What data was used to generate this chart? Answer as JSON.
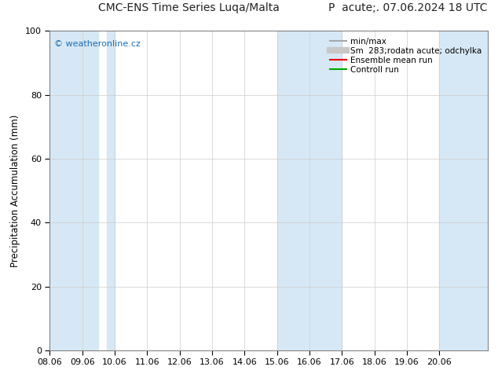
{
  "title_left": "CMC-ENS Time Series Luqa/Malta",
  "title_right": "P  acute;. 07.06.2024 18 UTC",
  "ylabel": "Precipitation Accumulation (mm)",
  "watermark": "© weatheronline.cz",
  "ylim": [
    0,
    100
  ],
  "yticks": [
    0,
    20,
    40,
    60,
    80,
    100
  ],
  "xtick_labels": [
    "08.06",
    "09.06",
    "10.06",
    "11.06",
    "12.06",
    "13.06",
    "14.06",
    "15.06",
    "16.06",
    "17.06",
    "18.06",
    "19.06",
    "20.06"
  ],
  "band_color": "#d6e8f5",
  "bg_color": "#ffffff",
  "grid_color": "#cccccc",
  "legend_labels": [
    "min/max",
    "Sm  283;rodatn acute; odchylka",
    "Ensemble mean run",
    "Controll run"
  ],
  "legend_colors": [
    "#a8a8a8",
    "#c8c8c8",
    "#ee0000",
    "#00aa00"
  ],
  "legend_lw": [
    1.5,
    6,
    1.5,
    1.5
  ],
  "font_size_title": 10,
  "font_size_tick": 8,
  "font_size_legend": 7.5,
  "font_size_ylabel": 8.5,
  "font_size_watermark": 8,
  "watermark_color": "#1a6eb5"
}
